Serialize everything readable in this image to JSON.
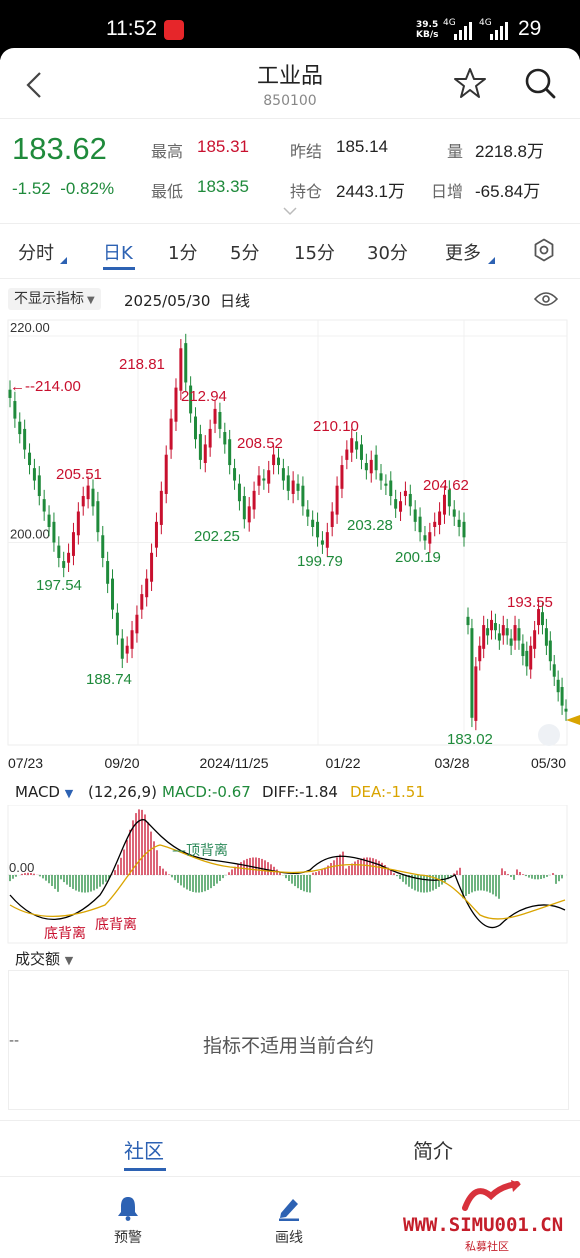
{
  "status_bar": {
    "time": "11:52",
    "net_speed_value": "39.5",
    "net_speed_unit": "KB/s",
    "net_type_1": "4G",
    "net_type_2": "4G",
    "battery": "29"
  },
  "header": {
    "title": "工业品",
    "code": "850100"
  },
  "quote": {
    "price": "183.62",
    "change": "-1.52",
    "change_pct": "-0.82%",
    "high_label": "最高",
    "high": "185.31",
    "low_label": "最低",
    "low": "183.35",
    "prev_settle_label": "昨结",
    "prev_settle": "185.14",
    "open_int_label": "持仓",
    "open_int": "2443.1万",
    "volume_label": "量",
    "volume": "2218.8万",
    "daily_inc_label": "日增",
    "daily_inc": "-65.84万"
  },
  "tabs": [
    "分时",
    "日K",
    "1分",
    "5分",
    "15分",
    "30分",
    "更多"
  ],
  "indicator_bar": {
    "selector": "不显示指标",
    "date": "2025/05/30",
    "period": "日线"
  },
  "chart_data": {
    "type": "candlestick",
    "ylim": [
      183,
      220
    ],
    "y_ticks": [
      "220.00",
      "200.00"
    ],
    "x_ticks": [
      "07/23",
      "09/20",
      "2024/11/25",
      "01/22",
      "03/28",
      "05/30"
    ],
    "price_marker": "214.00",
    "annotations": [
      {
        "label": "214.00",
        "value": 214.0,
        "kind": "high"
      },
      {
        "label": "205.51",
        "value": 205.51,
        "kind": "high"
      },
      {
        "label": "197.54",
        "value": 197.54,
        "kind": "low"
      },
      {
        "label": "188.74",
        "value": 188.74,
        "kind": "low"
      },
      {
        "label": "218.81",
        "value": 218.81,
        "kind": "high"
      },
      {
        "label": "212.94",
        "value": 212.94,
        "kind": "high"
      },
      {
        "label": "202.25",
        "value": 202.25,
        "kind": "low"
      },
      {
        "label": "208.52",
        "value": 208.52,
        "kind": "high"
      },
      {
        "label": "199.79",
        "value": 199.79,
        "kind": "low"
      },
      {
        "label": "210.10",
        "value": 210.1,
        "kind": "high"
      },
      {
        "label": "203.28",
        "value": 203.28,
        "kind": "low"
      },
      {
        "label": "200.19",
        "value": 200.19,
        "kind": "low"
      },
      {
        "label": "204.62",
        "value": 204.62,
        "kind": "high"
      },
      {
        "label": "193.55",
        "value": 193.55,
        "kind": "high"
      },
      {
        "label": "183.02",
        "value": 183.02,
        "kind": "low"
      }
    ],
    "close_series_segment_1": [
      214,
      212,
      210.5,
      209,
      207.5,
      206,
      204.5,
      203,
      201.5,
      200,
      198.5,
      197.54,
      199,
      201,
      203,
      204.5,
      205.51,
      203.5,
      201,
      198.5,
      196,
      193.5,
      191,
      188.74,
      190,
      191.5,
      193,
      195,
      196.5,
      199,
      202,
      205,
      208.5,
      212,
      215,
      218.81,
      215.5,
      212.5,
      210,
      208,
      209.5,
      211,
      212.94,
      211,
      209.5,
      207.5,
      206,
      204,
      202.25,
      203.5,
      205,
      206.5,
      206,
      207,
      208.52,
      207.5,
      206,
      205,
      206,
      205,
      203.5,
      202.5,
      201.5,
      200.5,
      199.79,
      201,
      203,
      205.5,
      207.5,
      209,
      210.1,
      209,
      208,
      207,
      208,
      207,
      206,
      205.5,
      204.5,
      203.28,
      204,
      205,
      203.5,
      202,
      201,
      200.19,
      201,
      202,
      203,
      204.62,
      203.5,
      202.5,
      201.5,
      200.5
    ],
    "close_series_segment_2": [
      192,
      183.02,
      188,
      190,
      192,
      191,
      192.5,
      191.5,
      190.5,
      192,
      191,
      190,
      192,
      190.5,
      189,
      188,
      190,
      191.5,
      193.55,
      192,
      190,
      188.5,
      187,
      185.5,
      184.2,
      183.62
    ]
  },
  "macd": {
    "selector": "MACD",
    "params": "(12,26,9)",
    "macd_value": "MACD:-0.67",
    "diff_value": "DIFF:-1.84",
    "dea_value": "DEA:-1.51",
    "zero_label": "0.00",
    "labels": [
      "顶背离",
      "底背离",
      "底背离"
    ]
  },
  "volume_panel": {
    "selector": "成交额",
    "dash": "--",
    "message": "指标不适用当前合约"
  },
  "bottom_tabs": [
    "社区",
    "简介"
  ],
  "nav": [
    "预警",
    "画线"
  ],
  "watermark": {
    "text": "WWW.SIMU001.CN",
    "sub": "私募社区"
  },
  "colors": {
    "up": "#c8102e",
    "down": "#1f8a3b",
    "accent": "#2d62b3",
    "dea": "#d9a400"
  }
}
